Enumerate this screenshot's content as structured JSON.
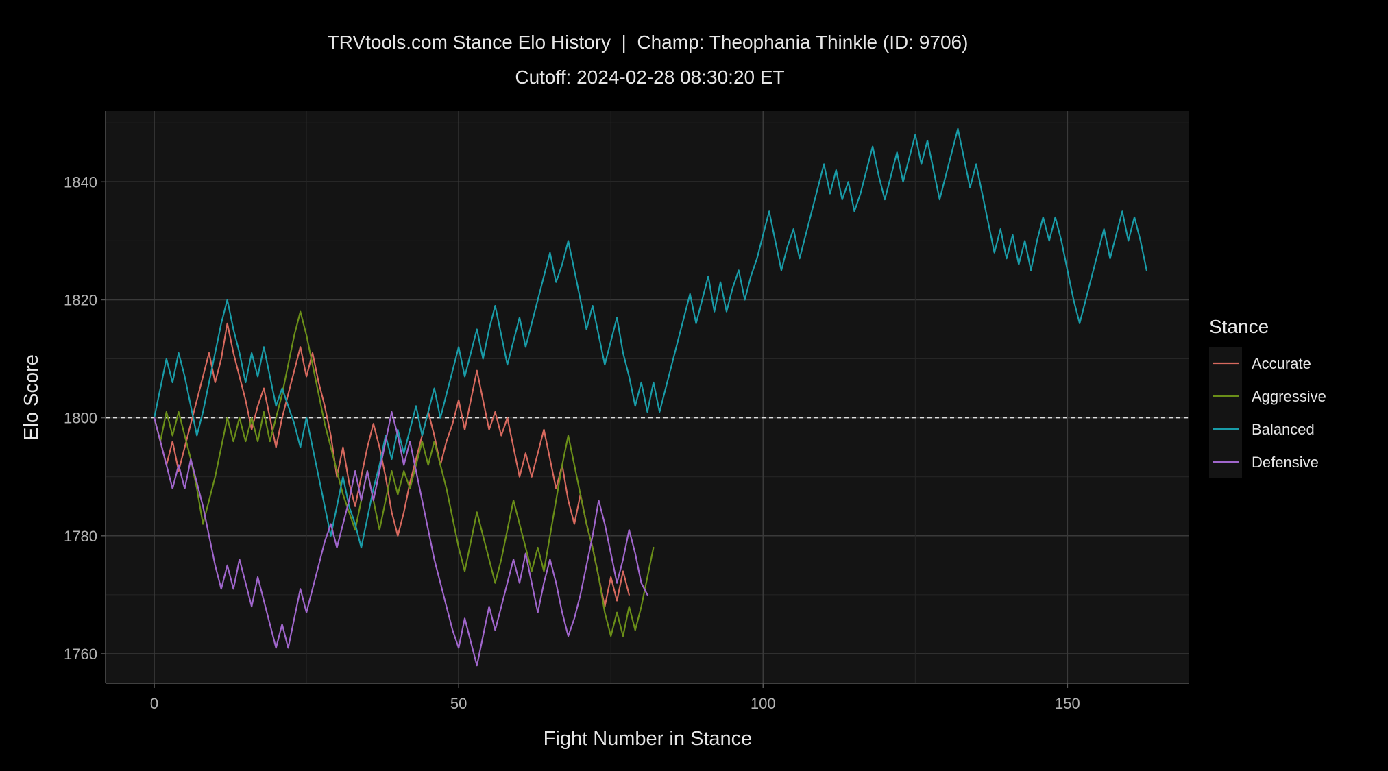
{
  "chart_data": {
    "type": "line",
    "title": "TRVtools.com Stance Elo History  |  Champ: Theophania Thinkle (ID: 9706)",
    "subtitle": "Cutoff: 2024-02-28 08:30:20 ET",
    "xlabel": "Fight Number in Stance",
    "ylabel": "Elo Score",
    "xlim": [
      -8,
      170
    ],
    "ylim": [
      1755,
      1852
    ],
    "x_ticks": [
      0,
      50,
      100,
      150
    ],
    "x_tick_labels": [
      "0",
      "50",
      "100",
      "150"
    ],
    "y_ticks": [
      1760,
      1780,
      1800,
      1820,
      1840
    ],
    "y_tick_labels": [
      "1760",
      "1780",
      "1800",
      "1820",
      "1840"
    ],
    "reference_line": {
      "y": 1800,
      "style": "dashed"
    },
    "grid": true,
    "legend": {
      "title": "Stance",
      "position": "right"
    },
    "series": [
      {
        "name": "Accurate",
        "color": "#d7695e",
        "values": [
          1800,
          1796,
          1792,
          1796,
          1791,
          1795,
          1799,
          1803,
          1807,
          1811,
          1806,
          1810,
          1816,
          1811,
          1807,
          1803,
          1798,
          1802,
          1805,
          1800,
          1795,
          1800,
          1804,
          1808,
          1812,
          1807,
          1811,
          1806,
          1802,
          1797,
          1790,
          1795,
          1789,
          1785,
          1790,
          1795,
          1799,
          1795,
          1790,
          1784,
          1780,
          1784,
          1789,
          1793,
          1797,
          1801,
          1797,
          1792,
          1796,
          1799,
          1803,
          1798,
          1803,
          1808,
          1803,
          1798,
          1801,
          1797,
          1800,
          1795,
          1790,
          1794,
          1790,
          1794,
          1798,
          1793,
          1788,
          1792,
          1786,
          1782,
          1787,
          1782,
          1778,
          1773,
          1768,
          1773,
          1769,
          1774,
          1770
        ]
      },
      {
        "name": "Aggressive",
        "color": "#6a8e18",
        "values": [
          1800,
          1796,
          1801,
          1797,
          1801,
          1797,
          1793,
          1788,
          1782,
          1786,
          1790,
          1795,
          1800,
          1796,
          1800,
          1796,
          1800,
          1796,
          1801,
          1796,
          1800,
          1804,
          1809,
          1814,
          1818,
          1814,
          1809,
          1804,
          1799,
          1795,
          1791,
          1787,
          1784,
          1781,
          1786,
          1791,
          1786,
          1781,
          1786,
          1791,
          1787,
          1791,
          1788,
          1792,
          1796,
          1792,
          1796,
          1792,
          1788,
          1783,
          1778,
          1774,
          1779,
          1784,
          1780,
          1776,
          1772,
          1776,
          1781,
          1786,
          1782,
          1778,
          1774,
          1778,
          1774,
          1780,
          1786,
          1792,
          1797,
          1792,
          1787,
          1782,
          1778,
          1773,
          1767,
          1763,
          1767,
          1763,
          1768,
          1764,
          1768,
          1773,
          1778
        ]
      },
      {
        "name": "Balanced",
        "color": "#199ca8",
        "values": [
          1800,
          1805,
          1810,
          1806,
          1811,
          1807,
          1802,
          1797,
          1801,
          1806,
          1811,
          1816,
          1820,
          1815,
          1811,
          1806,
          1811,
          1807,
          1812,
          1807,
          1802,
          1805,
          1802,
          1799,
          1795,
          1800,
          1795,
          1790,
          1785,
          1780,
          1785,
          1790,
          1785,
          1782,
          1778,
          1783,
          1788,
          1792,
          1797,
          1793,
          1798,
          1794,
          1798,
          1802,
          1797,
          1801,
          1805,
          1800,
          1804,
          1808,
          1812,
          1807,
          1811,
          1815,
          1810,
          1815,
          1819,
          1814,
          1809,
          1813,
          1817,
          1812,
          1816,
          1820,
          1824,
          1828,
          1823,
          1826,
          1830,
          1825,
          1820,
          1815,
          1819,
          1814,
          1809,
          1813,
          1817,
          1811,
          1807,
          1802,
          1806,
          1801,
          1806,
          1801,
          1805,
          1809,
          1813,
          1817,
          1821,
          1816,
          1820,
          1824,
          1818,
          1823,
          1818,
          1822,
          1825,
          1820,
          1824,
          1827,
          1831,
          1835,
          1830,
          1825,
          1829,
          1832,
          1827,
          1831,
          1835,
          1839,
          1843,
          1838,
          1842,
          1837,
          1840,
          1835,
          1838,
          1842,
          1846,
          1841,
          1837,
          1841,
          1845,
          1840,
          1844,
          1848,
          1843,
          1847,
          1842,
          1837,
          1841,
          1845,
          1849,
          1844,
          1839,
          1843,
          1838,
          1833,
          1828,
          1832,
          1827,
          1831,
          1826,
          1830,
          1825,
          1830,
          1834,
          1830,
          1834,
          1830,
          1825,
          1820,
          1816,
          1820,
          1824,
          1828,
          1832,
          1827,
          1831,
          1835,
          1830,
          1834,
          1830,
          1825
        ]
      },
      {
        "name": "Defensive",
        "color": "#a066cc",
        "values": [
          1800,
          1796,
          1792,
          1788,
          1792,
          1788,
          1793,
          1789,
          1785,
          1780,
          1775,
          1771,
          1775,
          1771,
          1776,
          1772,
          1768,
          1773,
          1769,
          1765,
          1761,
          1765,
          1761,
          1766,
          1771,
          1767,
          1771,
          1775,
          1779,
          1782,
          1778,
          1782,
          1786,
          1791,
          1786,
          1791,
          1786,
          1791,
          1796,
          1801,
          1797,
          1792,
          1796,
          1791,
          1786,
          1781,
          1776,
          1772,
          1768,
          1764,
          1761,
          1766,
          1762,
          1758,
          1763,
          1768,
          1764,
          1768,
          1772,
          1776,
          1772,
          1777,
          1772,
          1767,
          1772,
          1776,
          1772,
          1767,
          1763,
          1766,
          1770,
          1775,
          1780,
          1786,
          1782,
          1777,
          1772,
          1776,
          1781,
          1777,
          1772,
          1770
        ]
      }
    ]
  }
}
